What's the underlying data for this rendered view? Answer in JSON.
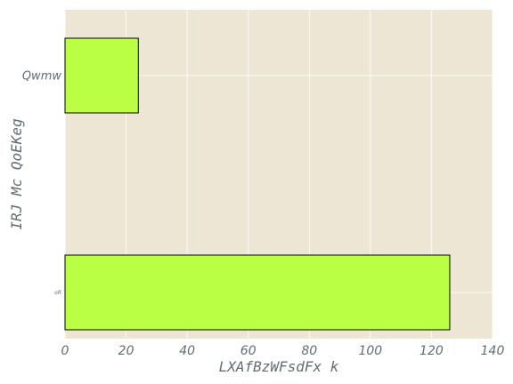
{
  "chart_data": {
    "type": "bar",
    "orientation": "horizontal",
    "categories": [
      "Qwmw",
      "oR"
    ],
    "values": [
      24,
      126
    ],
    "xlabel": "LXAfBzWFsdFx k",
    "ylabel": "IRJ Mc QoEKeg",
    "xlim": [
      0,
      140
    ],
    "xticks": [
      "0",
      "20",
      "40",
      "60",
      "80",
      "100",
      "120",
      "140"
    ],
    "grid": true,
    "colors": {
      "background": "#ede6d5",
      "bar": "#bbff44",
      "bar_edge": "#000000",
      "grid": "#ffffff",
      "text": "#5f6f73"
    }
  }
}
